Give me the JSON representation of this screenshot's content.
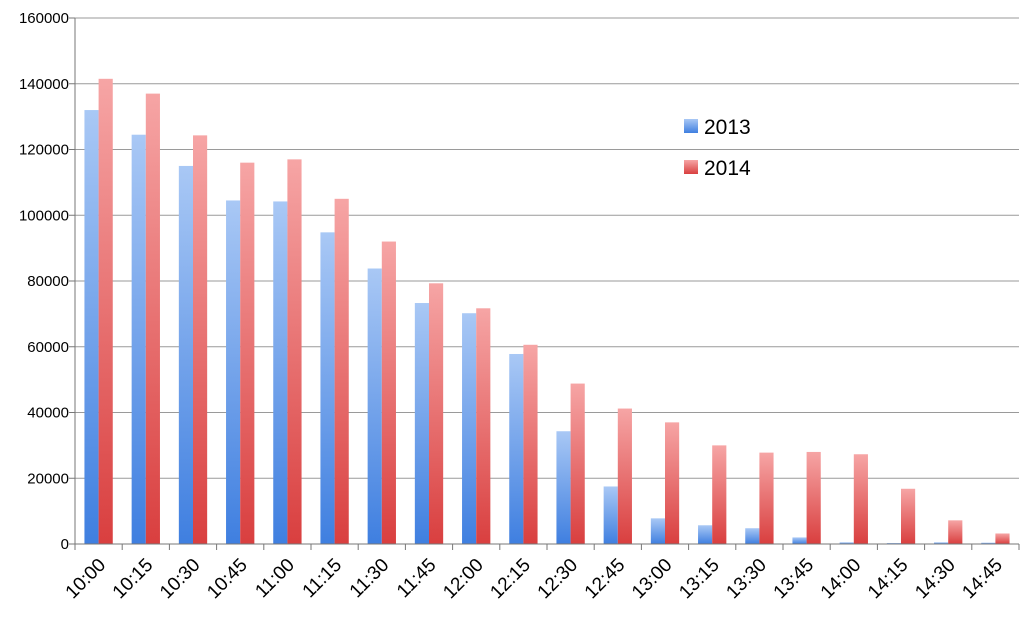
{
  "chart_data": {
    "type": "bar",
    "categories": [
      "10:00",
      "10:15",
      "10:30",
      "10:45",
      "11:00",
      "11:15",
      "11:30",
      "11:45",
      "12:00",
      "12:15",
      "12:30",
      "12:45",
      "13:00",
      "13:15",
      "13:30",
      "13:45",
      "14:00",
      "14:15",
      "14:30",
      "14:45"
    ],
    "series": [
      {
        "name": "2013",
        "color": "#5b93e8",
        "values": [
          132000,
          124500,
          115000,
          104500,
          104200,
          94800,
          83800,
          73300,
          70200,
          57800,
          34300,
          17500,
          7800,
          5700,
          4800,
          2000,
          500,
          300,
          500,
          400
        ]
      },
      {
        "name": "2014",
        "color": "#e05a5a",
        "values": [
          141500,
          137000,
          124300,
          116000,
          117000,
          105000,
          92000,
          79300,
          71700,
          60600,
          48800,
          41200,
          37000,
          30000,
          27800,
          28000,
          27300,
          16800,
          7200,
          3200
        ]
      }
    ],
    "yticks": [
      "0",
      "20000",
      "40000",
      "60000",
      "80000",
      "100000",
      "120000",
      "140000",
      "160000"
    ],
    "ylim": [
      0,
      160000
    ],
    "grid": true,
    "legend": "right"
  }
}
